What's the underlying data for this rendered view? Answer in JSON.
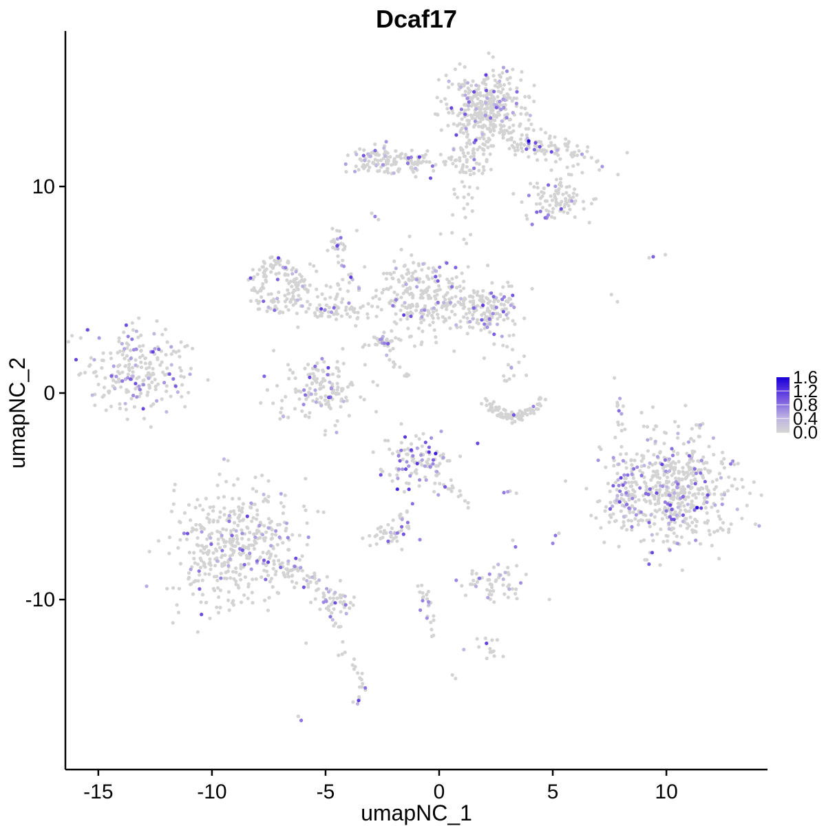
{
  "title": "Dcaf17",
  "axes": {
    "x": {
      "label": "umapNC_1",
      "ticks": [
        -15,
        -10,
        -5,
        0,
        5,
        10
      ]
    },
    "y": {
      "label": "umapNC_2",
      "ticks": [
        10,
        0,
        -10
      ]
    }
  },
  "legend": {
    "labels": [
      "1.6",
      "1.2",
      "0.8",
      "0.4",
      "0.0"
    ],
    "vmin": 0.0,
    "vmax": 1.6
  },
  "colors": {
    "background": "#ffffff",
    "axis": "#000000",
    "grey_point": "#d3d3d3",
    "stops": [
      [
        0.0,
        "#d3d3d3"
      ],
      [
        0.25,
        "#bfb4e2"
      ],
      [
        0.5,
        "#8b72e0"
      ],
      [
        0.75,
        "#5a35e0"
      ],
      [
        1.0,
        "#1b00d8"
      ]
    ]
  },
  "chart_data": {
    "type": "scatter",
    "title": "Dcaf17",
    "xlabel": "umapNC_1",
    "ylabel": "umapNC_2",
    "xlim": [
      -16.45,
      14.45
    ],
    "ylim": [
      -18.23,
      17.53
    ],
    "x_ticks": [
      -15,
      -10,
      -5,
      0,
      5,
      10
    ],
    "y_ticks": [
      10,
      0,
      -10
    ],
    "legend_values": [
      1.6,
      1.2,
      0.8,
      0.4,
      0.0
    ],
    "value_range": [
      0.0,
      1.6
    ],
    "grid": false,
    "legend_position": "right",
    "clusters": [
      {
        "name": "top-main",
        "shape": "gauss",
        "c": [
          2.05,
          13.95
        ],
        "sd": [
          0.85,
          0.8
        ],
        "n": 340,
        "f": 0.13
      },
      {
        "name": "top-sub",
        "shape": "gauss",
        "c": [
          1.3,
          11.6
        ],
        "sd": [
          0.45,
          0.55
        ],
        "n": 55,
        "f": 0.1
      },
      {
        "name": "top-band-right",
        "shape": "gauss",
        "c": [
          4.3,
          12.1
        ],
        "sd": [
          1.5,
          0.42
        ],
        "rot": -18,
        "n": 150,
        "f": 0.13
      },
      {
        "name": "top-lobe-right",
        "shape": "gauss",
        "c": [
          5.3,
          9.35
        ],
        "sd": [
          0.75,
          0.55
        ],
        "n": 90,
        "f": 0.07
      },
      {
        "name": "top-streak",
        "shape": "line",
        "a": [
          4.2,
          9.0
        ],
        "b": [
          4.85,
          8.45
        ],
        "j": 0.06,
        "n": 6,
        "f": 0.85,
        "vmin": 0.6,
        "vmax": 1.0
      },
      {
        "name": "left-arm",
        "shape": "gauss",
        "c": [
          -1.5,
          11.2
        ],
        "sd": [
          1.05,
          0.3
        ],
        "n": 105,
        "f": 0.12
      },
      {
        "name": "left-arm-knot",
        "shape": "gauss",
        "c": [
          -2.85,
          11.35
        ],
        "sd": [
          0.38,
          0.42
        ],
        "n": 45,
        "f": 0.15
      },
      {
        "name": "below-column",
        "shape": "gauss",
        "c": [
          1.2,
          9.5
        ],
        "sd": [
          0.3,
          1.1
        ],
        "n": 26,
        "f": 0.08
      },
      {
        "name": "blob-above-mid",
        "shape": "gauss",
        "c": [
          -4.5,
          7.2
        ],
        "sd": [
          0.32,
          0.4
        ],
        "n": 22,
        "f": 0.1
      },
      {
        "name": "diag-string",
        "shape": "line",
        "a": [
          -4.3,
          6.4
        ],
        "b": [
          -3.5,
          4.85
        ],
        "j": 0.08,
        "n": 11,
        "f": 0.45
      },
      {
        "name": "ring-left",
        "shape": "ring",
        "c": [
          -7.2,
          5.2
        ],
        "r0": 0.3,
        "r1": 1.4,
        "scale": [
          0.85,
          1.0
        ],
        "n": 135,
        "f": 0.15
      },
      {
        "name": "ring-halo",
        "shape": "gauss",
        "c": [
          -5.9,
          4.7
        ],
        "sd": [
          0.55,
          0.6
        ],
        "n": 16,
        "f": 0.05
      },
      {
        "name": "mid-bar",
        "shape": "gauss",
        "c": [
          -4.3,
          3.95
        ],
        "sd": [
          1.0,
          0.28
        ],
        "n": 60,
        "f": 0.1
      },
      {
        "name": "mid-scatter",
        "shape": "gauss",
        "c": [
          -4.7,
          5.0
        ],
        "sd": [
          0.8,
          0.7
        ],
        "n": 22,
        "f": 0.04
      },
      {
        "name": "center-big",
        "shape": "gauss",
        "c": [
          -0.8,
          4.7
        ],
        "sd": [
          1.0,
          1.05
        ],
        "n": 225,
        "f": 0.12
      },
      {
        "name": "center-right",
        "shape": "gauss",
        "c": [
          1.9,
          4.1
        ],
        "sd": [
          0.85,
          0.62
        ],
        "n": 165,
        "f": 0.16
      },
      {
        "name": "far-left",
        "shape": "gauss",
        "c": [
          -13.5,
          0.95
        ],
        "sd": [
          1.1,
          1.0
        ],
        "n": 210,
        "f": 0.17
      },
      {
        "name": "far-left-halo",
        "shape": "gauss",
        "c": [
          -11.9,
          1.2
        ],
        "sd": [
          0.55,
          0.8
        ],
        "n": 20,
        "f": 0.05
      },
      {
        "name": "small-dense",
        "shape": "gauss",
        "c": [
          -2.45,
          2.5
        ],
        "sd": [
          0.36,
          0.3
        ],
        "n": 30,
        "f": 0.12
      },
      {
        "name": "small-streak",
        "shape": "line",
        "a": [
          -2.62,
          2.42
        ],
        "b": [
          -2.3,
          2.35
        ],
        "j": 0.05,
        "n": 3,
        "f": 1.0,
        "vmin": 0.55,
        "vmax": 0.85
      },
      {
        "name": "string-down",
        "shape": "line",
        "a": [
          -2.25,
          1.85
        ],
        "b": [
          -1.25,
          0.5
        ],
        "j": 0.1,
        "n": 10,
        "f": 0.2
      },
      {
        "name": "crescent-left",
        "shape": "gauss",
        "c": [
          -5.15,
          0.15
        ],
        "sd": [
          1.05,
          0.78
        ],
        "n": 150,
        "f": 0.15
      },
      {
        "name": "smile-arc",
        "shape": "arc",
        "c": [
          3.25,
          0.1
        ],
        "r": 1.25,
        "a0": 195,
        "a1": 345,
        "j": 0.13,
        "n": 85,
        "f": 0.02
      },
      {
        "name": "smile-above",
        "shape": "gauss",
        "c": [
          2.95,
          1.3
        ],
        "sd": [
          0.42,
          0.8
        ],
        "n": 18,
        "f": 0.16
      },
      {
        "name": "dense-blob",
        "shape": "gauss",
        "c": [
          -0.95,
          -3.35
        ],
        "sd": [
          0.8,
          0.78
        ],
        "n": 115,
        "f": 0.3,
        "vmin": 0.5,
        "vmax": 1.45
      },
      {
        "name": "dense-tail-dr",
        "shape": "line",
        "a": [
          0.3,
          -4.4
        ],
        "b": [
          1.35,
          -5.45
        ],
        "j": 0.1,
        "n": 13,
        "f": 0.15
      },
      {
        "name": "dense-tail-dl",
        "shape": "line",
        "a": [
          -1.2,
          -5.1
        ],
        "b": [
          -1.7,
          -6.1
        ],
        "j": 0.08,
        "n": 8,
        "f": 0.25
      },
      {
        "name": "far-right-big",
        "shape": "gauss",
        "c": [
          10.2,
          -4.7
        ],
        "sd": [
          1.4,
          1.35
        ],
        "n": 570,
        "f": 0.16
      },
      {
        "name": "far-right-protrusion",
        "shape": "gauss",
        "c": [
          8.25,
          -5.2
        ],
        "sd": [
          0.33,
          0.85
        ],
        "n": 48,
        "f": 0.4
      },
      {
        "name": "right-string",
        "shape": "line",
        "a": [
          7.9,
          0.9
        ],
        "b": [
          8.05,
          -1.6
        ],
        "j": 0.09,
        "n": 12,
        "f": 0.18
      },
      {
        "name": "bottom-left-big",
        "shape": "gauss",
        "c": [
          -8.75,
          -7.5
        ],
        "sd": [
          1.4,
          1.5
        ],
        "n": 440,
        "f": 0.09
      },
      {
        "name": "bl-tail",
        "shape": "line",
        "a": [
          -6.9,
          -8.2
        ],
        "b": [
          -4.65,
          -9.95
        ],
        "j": 0.28,
        "n": 55,
        "f": 0.13
      },
      {
        "name": "bl-end-blob",
        "shape": "gauss",
        "c": [
          -4.4,
          -10.2
        ],
        "sd": [
          0.42,
          0.33
        ],
        "n": 30,
        "f": 0.2
      },
      {
        "name": "bl-drip",
        "shape": "line",
        "a": [
          -4.55,
          -11.0
        ],
        "b": [
          -4.05,
          -13.1
        ],
        "j": 0.08,
        "n": 9,
        "f": 0.1
      },
      {
        "name": "small-blob-2",
        "shape": "gauss",
        "c": [
          -2.3,
          -6.85
        ],
        "sd": [
          0.5,
          0.32
        ],
        "n": 40,
        "f": 0.18
      },
      {
        "name": "cb-string",
        "shape": "line",
        "a": [
          -0.8,
          -9.15
        ],
        "b": [
          -0.15,
          -11.95
        ],
        "j": 0.12,
        "n": 24,
        "f": 0.13
      },
      {
        "name": "rb-blob",
        "shape": "gauss",
        "c": [
          2.45,
          -9.2
        ],
        "sd": [
          0.8,
          0.4
        ],
        "n": 55,
        "f": 0.22
      },
      {
        "name": "small-bottom",
        "shape": "gauss",
        "c": [
          2.3,
          -12.3
        ],
        "sd": [
          0.35,
          0.28
        ],
        "n": 14,
        "f": 0.15
      },
      {
        "name": "bottom-tail-1",
        "shape": "line",
        "a": [
          -3.79,
          -12.6
        ],
        "b": [
          -3.3,
          -14.3
        ],
        "j": 0.09,
        "n": 12,
        "f": 0.18
      },
      {
        "name": "bottom-tail-2",
        "shape": "line",
        "a": [
          -3.3,
          -14.35
        ],
        "b": [
          -3.68,
          -15.0
        ],
        "j": 0.07,
        "n": 6,
        "f": 0.3
      }
    ],
    "extra_points": [
      [
        3.94,
        12.2,
        1.6
      ],
      [
        -2.97,
        8.7,
        0
      ],
      [
        -2.67,
        8.4,
        0
      ],
      [
        -2.82,
        8.55,
        0.7
      ],
      [
        -4.33,
        7.52,
        0.8
      ],
      [
        11.35,
        -5.55,
        1.5
      ],
      [
        8.03,
        -1.82,
        0
      ],
      [
        7.58,
        4.77,
        0
      ],
      [
        7.85,
        4.42,
        0
      ],
      [
        9.42,
        6.6,
        0.9
      ],
      [
        9.24,
        6.55,
        0
      ],
      [
        9.95,
        6.7,
        0
      ],
      [
        2.85,
        -4.82,
        0.75
      ],
      [
        3.02,
        -4.78,
        0.55
      ],
      [
        3.12,
        -4.75,
        0
      ],
      [
        3.4,
        -4.85,
        0
      ],
      [
        -0.85,
        -7.1,
        0.7
      ],
      [
        3.24,
        -7.13,
        0
      ],
      [
        3.36,
        -7.45,
        0.8
      ],
      [
        5.12,
        -6.9,
        0.8
      ],
      [
        5.0,
        -7.28,
        0.7
      ],
      [
        1.67,
        -11.9,
        0
      ],
      [
        0.58,
        -13.65,
        0
      ],
      [
        0.72,
        -13.82,
        0
      ],
      [
        -6.2,
        -15.65,
        0
      ],
      [
        -6.07,
        -15.85,
        0.8
      ],
      [
        4.15,
        -0.65,
        0.7
      ],
      [
        2.42,
        2.37,
        0
      ]
    ]
  }
}
